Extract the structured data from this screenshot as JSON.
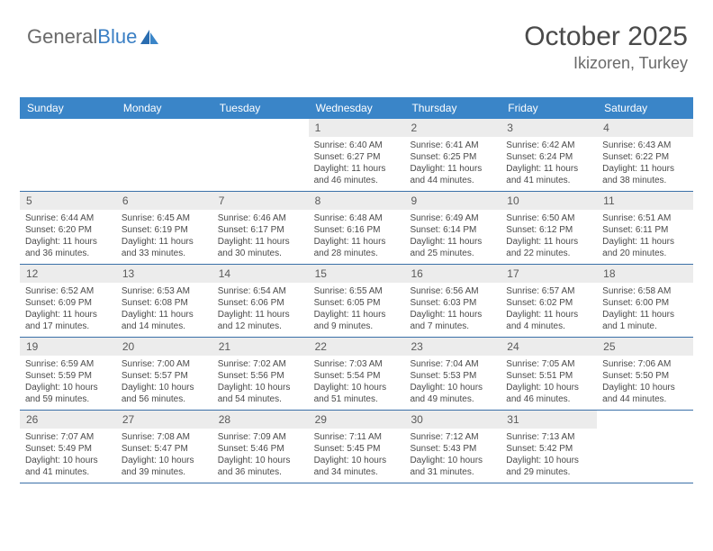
{
  "logo": {
    "text_general": "General",
    "text_blue": "Blue"
  },
  "header": {
    "title": "October 2025",
    "subtitle": "Ikizoren, Turkey"
  },
  "colors": {
    "header_bg": "#3a85c8",
    "header_text": "#ffffff",
    "daynum_bg": "#ececec",
    "text": "#4a4a4a",
    "rule": "#3a70a8"
  },
  "day_names": [
    "Sunday",
    "Monday",
    "Tuesday",
    "Wednesday",
    "Thursday",
    "Friday",
    "Saturday"
  ],
  "weeks": [
    [
      null,
      null,
      null,
      {
        "n": "1",
        "sr": "6:40 AM",
        "ss": "6:27 PM",
        "dl": "Daylight: 11 hours and 46 minutes."
      },
      {
        "n": "2",
        "sr": "6:41 AM",
        "ss": "6:25 PM",
        "dl": "Daylight: 11 hours and 44 minutes."
      },
      {
        "n": "3",
        "sr": "6:42 AM",
        "ss": "6:24 PM",
        "dl": "Daylight: 11 hours and 41 minutes."
      },
      {
        "n": "4",
        "sr": "6:43 AM",
        "ss": "6:22 PM",
        "dl": "Daylight: 11 hours and 38 minutes."
      }
    ],
    [
      {
        "n": "5",
        "sr": "6:44 AM",
        "ss": "6:20 PM",
        "dl": "Daylight: 11 hours and 36 minutes."
      },
      {
        "n": "6",
        "sr": "6:45 AM",
        "ss": "6:19 PM",
        "dl": "Daylight: 11 hours and 33 minutes."
      },
      {
        "n": "7",
        "sr": "6:46 AM",
        "ss": "6:17 PM",
        "dl": "Daylight: 11 hours and 30 minutes."
      },
      {
        "n": "8",
        "sr": "6:48 AM",
        "ss": "6:16 PM",
        "dl": "Daylight: 11 hours and 28 minutes."
      },
      {
        "n": "9",
        "sr": "6:49 AM",
        "ss": "6:14 PM",
        "dl": "Daylight: 11 hours and 25 minutes."
      },
      {
        "n": "10",
        "sr": "6:50 AM",
        "ss": "6:12 PM",
        "dl": "Daylight: 11 hours and 22 minutes."
      },
      {
        "n": "11",
        "sr": "6:51 AM",
        "ss": "6:11 PM",
        "dl": "Daylight: 11 hours and 20 minutes."
      }
    ],
    [
      {
        "n": "12",
        "sr": "6:52 AM",
        "ss": "6:09 PM",
        "dl": "Daylight: 11 hours and 17 minutes."
      },
      {
        "n": "13",
        "sr": "6:53 AM",
        "ss": "6:08 PM",
        "dl": "Daylight: 11 hours and 14 minutes."
      },
      {
        "n": "14",
        "sr": "6:54 AM",
        "ss": "6:06 PM",
        "dl": "Daylight: 11 hours and 12 minutes."
      },
      {
        "n": "15",
        "sr": "6:55 AM",
        "ss": "6:05 PM",
        "dl": "Daylight: 11 hours and 9 minutes."
      },
      {
        "n": "16",
        "sr": "6:56 AM",
        "ss": "6:03 PM",
        "dl": "Daylight: 11 hours and 7 minutes."
      },
      {
        "n": "17",
        "sr": "6:57 AM",
        "ss": "6:02 PM",
        "dl": "Daylight: 11 hours and 4 minutes."
      },
      {
        "n": "18",
        "sr": "6:58 AM",
        "ss": "6:00 PM",
        "dl": "Daylight: 11 hours and 1 minute."
      }
    ],
    [
      {
        "n": "19",
        "sr": "6:59 AM",
        "ss": "5:59 PM",
        "dl": "Daylight: 10 hours and 59 minutes."
      },
      {
        "n": "20",
        "sr": "7:00 AM",
        "ss": "5:57 PM",
        "dl": "Daylight: 10 hours and 56 minutes."
      },
      {
        "n": "21",
        "sr": "7:02 AM",
        "ss": "5:56 PM",
        "dl": "Daylight: 10 hours and 54 minutes."
      },
      {
        "n": "22",
        "sr": "7:03 AM",
        "ss": "5:54 PM",
        "dl": "Daylight: 10 hours and 51 minutes."
      },
      {
        "n": "23",
        "sr": "7:04 AM",
        "ss": "5:53 PM",
        "dl": "Daylight: 10 hours and 49 minutes."
      },
      {
        "n": "24",
        "sr": "7:05 AM",
        "ss": "5:51 PM",
        "dl": "Daylight: 10 hours and 46 minutes."
      },
      {
        "n": "25",
        "sr": "7:06 AM",
        "ss": "5:50 PM",
        "dl": "Daylight: 10 hours and 44 minutes."
      }
    ],
    [
      {
        "n": "26",
        "sr": "7:07 AM",
        "ss": "5:49 PM",
        "dl": "Daylight: 10 hours and 41 minutes."
      },
      {
        "n": "27",
        "sr": "7:08 AM",
        "ss": "5:47 PM",
        "dl": "Daylight: 10 hours and 39 minutes."
      },
      {
        "n": "28",
        "sr": "7:09 AM",
        "ss": "5:46 PM",
        "dl": "Daylight: 10 hours and 36 minutes."
      },
      {
        "n": "29",
        "sr": "7:11 AM",
        "ss": "5:45 PM",
        "dl": "Daylight: 10 hours and 34 minutes."
      },
      {
        "n": "30",
        "sr": "7:12 AM",
        "ss": "5:43 PM",
        "dl": "Daylight: 10 hours and 31 minutes."
      },
      {
        "n": "31",
        "sr": "7:13 AM",
        "ss": "5:42 PM",
        "dl": "Daylight: 10 hours and 29 minutes."
      },
      null
    ]
  ]
}
